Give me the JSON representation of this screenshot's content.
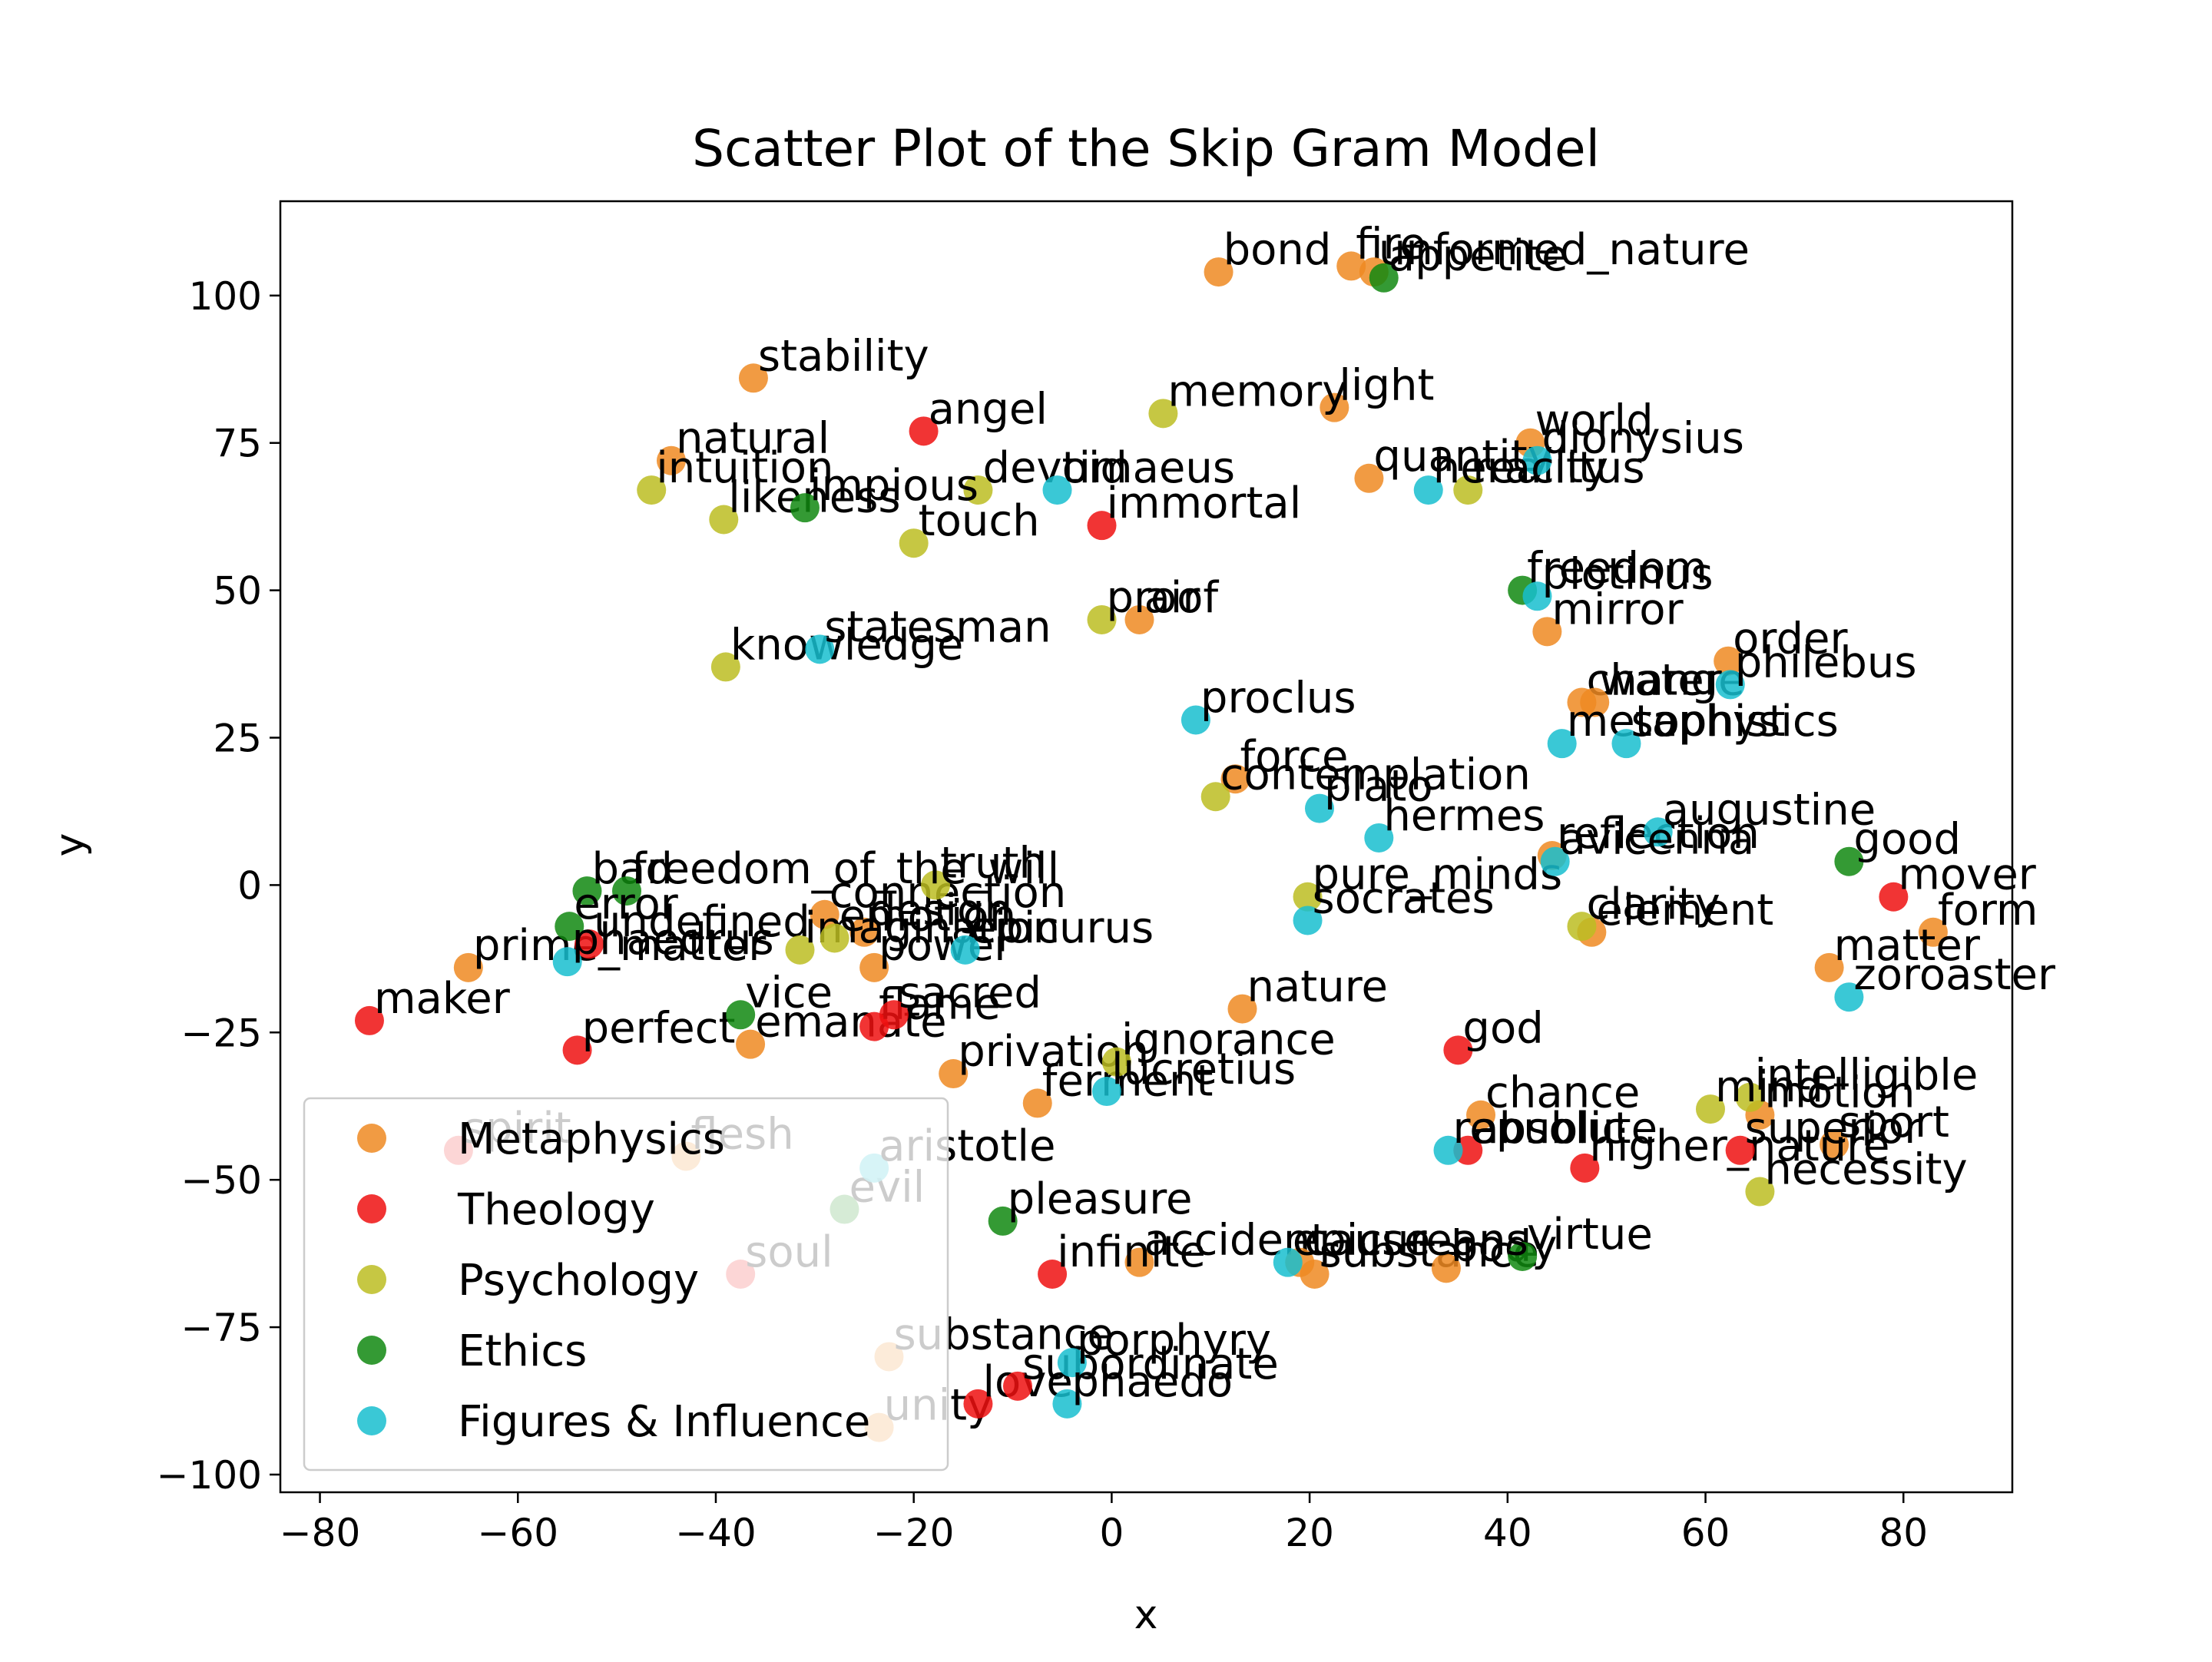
{
  "chart_data": {
    "type": "scatter",
    "title": "Scatter Plot of the Skip Gram Model",
    "xlabel": "x",
    "ylabel": "y",
    "xlim": [
      -84,
      91
    ],
    "ylim": [
      -103,
      116
    ],
    "xticks": [
      -80,
      -60,
      -40,
      -20,
      0,
      20,
      40,
      60,
      80
    ],
    "yticks": [
      100,
      75,
      50,
      25,
      0,
      -25,
      -50,
      -75,
      -100
    ],
    "xtick_labels": [
      "−80",
      "−60",
      "−40",
      "−20",
      "0",
      "20",
      "40",
      "60",
      "80"
    ],
    "ytick_labels": [
      "100",
      "75",
      "50",
      "25",
      "0",
      "−25",
      "−50",
      "−75",
      "−100"
    ],
    "grid": false,
    "legend_position": "lower-left",
    "series": [
      {
        "name": "Metaphysics",
        "color": "#ee8a22",
        "points": [
          {
            "label": "bond",
            "x": 10.8,
            "y": 104
          },
          {
            "label": "fire",
            "x": 24.2,
            "y": 105
          },
          {
            "label": "unformed_nature",
            "x": 26.5,
            "y": 104
          },
          {
            "label": "stability",
            "x": -36.2,
            "y": 86
          },
          {
            "label": "light",
            "x": 22.5,
            "y": 81
          },
          {
            "label": "natural",
            "x": -44.5,
            "y": 72
          },
          {
            "label": "world",
            "x": 42.3,
            "y": 75
          },
          {
            "label": "quantity",
            "x": 26,
            "y": 69
          },
          {
            "label": "air",
            "x": 2.8,
            "y": 45
          },
          {
            "label": "mirror",
            "x": 44,
            "y": 43
          },
          {
            "label": "order",
            "x": 62.3,
            "y": 38
          },
          {
            "label": "change",
            "x": 47.5,
            "y": 31
          },
          {
            "label": "water",
            "x": 48.8,
            "y": 31
          },
          {
            "label": "force",
            "x": 12.5,
            "y": 18
          },
          {
            "label": "reflection",
            "x": 44.5,
            "y": 5
          },
          {
            "label": "element",
            "x": 48.5,
            "y": -8
          },
          {
            "label": "form",
            "x": 83,
            "y": -8
          },
          {
            "label": "matter",
            "x": 72.5,
            "y": -14
          },
          {
            "label": "connection",
            "x": -29,
            "y": -5
          },
          {
            "label": "design",
            "x": -25,
            "y": -8
          },
          {
            "label": "power",
            "x": -24,
            "y": -14
          },
          {
            "label": "prime_matter",
            "x": -65,
            "y": -14
          },
          {
            "label": "emanate",
            "x": -36.5,
            "y": -27
          },
          {
            "label": "nature",
            "x": 13.2,
            "y": -21
          },
          {
            "label": "privation",
            "x": -16,
            "y": -32
          },
          {
            "label": "ferment",
            "x": -7.5,
            "y": -37
          },
          {
            "label": "chance",
            "x": 37.3,
            "y": -39
          },
          {
            "label": "accident",
            "x": 2.8,
            "y": -64
          },
          {
            "label": "substance",
            "x": 20.5,
            "y": -66
          },
          {
            "label": "cause",
            "x": 19,
            "y": -64
          },
          {
            "label": "body",
            "x": 33.8,
            "y": -65
          },
          {
            "label": "motion",
            "x": 65.5,
            "y": -39
          },
          {
            "label": "substance",
            "x": -22.5,
            "y": -80
          },
          {
            "label": "unity",
            "x": -23.5,
            "y": -92
          },
          {
            "label": "sport",
            "x": 73,
            "y": -44
          },
          {
            "label": "flesh",
            "x": -43,
            "y": -46
          }
        ]
      },
      {
        "name": "Theology",
        "color": "#ee1111",
        "points": [
          {
            "label": "angel",
            "x": -19,
            "y": 77
          },
          {
            "label": "immortal",
            "x": -1,
            "y": 61
          },
          {
            "label": "mover",
            "x": 79,
            "y": -2
          },
          {
            "label": "maker",
            "x": -75,
            "y": -23
          },
          {
            "label": "perfect",
            "x": -54,
            "y": -28
          },
          {
            "label": "flame",
            "x": -24,
            "y": -24
          },
          {
            "label": "sacred",
            "x": -22,
            "y": -22
          },
          {
            "label": "god",
            "x": 35,
            "y": -28
          },
          {
            "label": "absolute",
            "x": 36,
            "y": -45
          },
          {
            "label": "higher_nature",
            "x": 47.8,
            "y": -48
          },
          {
            "label": "superior",
            "x": 63.5,
            "y": -45
          },
          {
            "label": "infinite",
            "x": -6,
            "y": -66
          },
          {
            "label": "love",
            "x": -13.5,
            "y": -88
          },
          {
            "label": "subordinate",
            "x": -9.5,
            "y": -85
          },
          {
            "label": "spirit",
            "x": -66,
            "y": -45
          },
          {
            "label": "soul",
            "x": -37.5,
            "y": -66
          },
          {
            "label": "undefined",
            "x": -52.8,
            "y": -10
          }
        ]
      },
      {
        "name": "Psychology",
        "color": "#bcbd22",
        "points": [
          {
            "label": "memory",
            "x": 5.2,
            "y": 80
          },
          {
            "label": "intuition",
            "x": -46.5,
            "y": 67
          },
          {
            "label": "likeness",
            "x": -39.2,
            "y": 62
          },
          {
            "label": "devoid",
            "x": -13.5,
            "y": 67
          },
          {
            "label": "touch",
            "x": -20,
            "y": 58
          },
          {
            "label": "reality",
            "x": 36,
            "y": 67
          },
          {
            "label": "proof",
            "x": -1,
            "y": 45
          },
          {
            "label": "knowledge",
            "x": -39,
            "y": 37
          },
          {
            "label": "contemplation",
            "x": 10.5,
            "y": 15
          },
          {
            "label": "truth",
            "x": -17.8,
            "y": 0
          },
          {
            "label": "pure_minds",
            "x": 19.8,
            "y": -2
          },
          {
            "label": "clarity",
            "x": 47.5,
            "y": -7
          },
          {
            "label": "imagination",
            "x": -31.5,
            "y": -11
          },
          {
            "label": "ignorance",
            "x": 0.5,
            "y": -30
          },
          {
            "label": "intelligible",
            "x": 64.5,
            "y": -36
          },
          {
            "label": "mind",
            "x": 60.5,
            "y": -38
          },
          {
            "label": "necessity",
            "x": 65.5,
            "y": -52
          },
          {
            "label": "emotion",
            "x": -28,
            "y": -9
          }
        ]
      },
      {
        "name": "Ethics",
        "color": "#118811",
        "points": [
          {
            "label": "appetite",
            "x": 27.5,
            "y": 103
          },
          {
            "label": "impious",
            "x": -31,
            "y": 64
          },
          {
            "label": "freedom",
            "x": 41.5,
            "y": 50
          },
          {
            "label": "good",
            "x": 74.5,
            "y": 4
          },
          {
            "label": "bad",
            "x": -53,
            "y": -1
          },
          {
            "label": "freedom_of_the_will",
            "x": -49,
            "y": -1
          },
          {
            "label": "error",
            "x": -54.8,
            "y": -7
          },
          {
            "label": "vice",
            "x": -37.5,
            "y": -22
          },
          {
            "label": "pleasure",
            "x": -11,
            "y": -57
          },
          {
            "label": "virtue",
            "x": 41.5,
            "y": -63
          },
          {
            "label": "evil",
            "x": -27,
            "y": -55
          }
        ]
      },
      {
        "name": "Figures & Influence",
        "color": "#17becf",
        "points": [
          {
            "label": "timaeus",
            "x": -5.5,
            "y": 67
          },
          {
            "label": "dionysius",
            "x": 43,
            "y": 72
          },
          {
            "label": "heraclitus",
            "x": 32,
            "y": 67
          },
          {
            "label": "plotinus",
            "x": 43,
            "y": 49
          },
          {
            "label": "statesman",
            "x": -29.5,
            "y": 40
          },
          {
            "label": "philebus",
            "x": 62.5,
            "y": 34
          },
          {
            "label": "metaphysics",
            "x": 45.5,
            "y": 24
          },
          {
            "label": "sophist",
            "x": 52,
            "y": 24
          },
          {
            "label": "proclus",
            "x": 8.5,
            "y": 28
          },
          {
            "label": "plato",
            "x": 21,
            "y": 13
          },
          {
            "label": "hermes",
            "x": 27,
            "y": 8
          },
          {
            "label": "augustine",
            "x": 55.2,
            "y": 9
          },
          {
            "label": "avicenna",
            "x": 44.8,
            "y": 4
          },
          {
            "label": "socrates",
            "x": 19.8,
            "y": -6
          },
          {
            "label": "zoroaster",
            "x": 74.5,
            "y": -19
          },
          {
            "label": "epicurus",
            "x": -14.8,
            "y": -11
          },
          {
            "label": "phaedrus",
            "x": -55,
            "y": -13
          },
          {
            "label": "lucretius",
            "x": -0.5,
            "y": -35
          },
          {
            "label": "republic",
            "x": 34,
            "y": -45
          },
          {
            "label": "epicureans",
            "x": 17.8,
            "y": -64
          },
          {
            "label": "aristotle",
            "x": -24,
            "y": -48
          },
          {
            "label": "porphyry",
            "x": -4,
            "y": -81
          },
          {
            "label": "phaedo",
            "x": -4.5,
            "y": -88
          }
        ]
      }
    ],
    "legend": [
      {
        "label": "Metaphysics",
        "color": "#ee8a22"
      },
      {
        "label": "Theology",
        "color": "#ee1111"
      },
      {
        "label": "Psychology",
        "color": "#bcbd22"
      },
      {
        "label": "Ethics",
        "color": "#118811"
      },
      {
        "label": "Figures & Influence",
        "color": "#17becf"
      }
    ]
  }
}
